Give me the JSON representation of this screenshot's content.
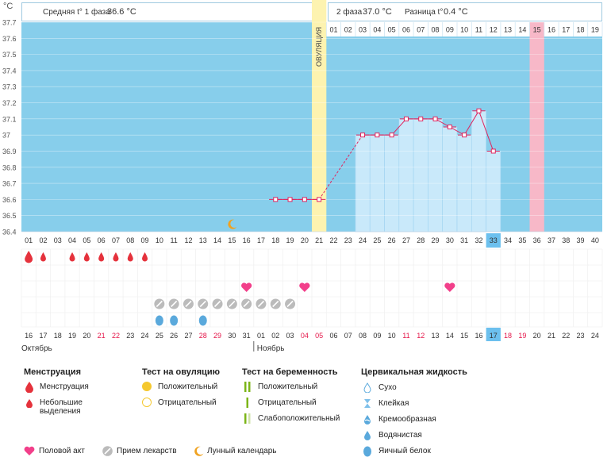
{
  "unit_label": "°C",
  "top": {
    "phase1_label": "Средняя t° 1 фаза",
    "phase1_value": "36.6 °C",
    "phase2_label": "2 фаза",
    "phase2_value": "37.0 °C",
    "diff_label": "Разница t°",
    "diff_value": "0.4 °C",
    "ovulation_label": "ОВУЛЯЦИЯ"
  },
  "chart_data": {
    "type": "line",
    "ylim": [
      36.4,
      37.7
    ],
    "y_ticks": [
      "37.7",
      "37.6",
      "37.5",
      "37.4",
      "37.3",
      "37.2",
      "37.1",
      "37",
      "36.9",
      "36.8",
      "36.7",
      "36.6",
      "36.5",
      "36.4"
    ],
    "cycle_days": [
      "01",
      "02",
      "03",
      "04",
      "05",
      "06",
      "07",
      "08",
      "09",
      "10",
      "11",
      "12",
      "13",
      "14",
      "15",
      "16",
      "17",
      "18",
      "19",
      "20",
      "21",
      "22",
      "23",
      "24",
      "25",
      "26",
      "27",
      "28",
      "29",
      "30",
      "31",
      "32",
      "33",
      "34",
      "35",
      "36",
      "37",
      "38",
      "39",
      "40"
    ],
    "current_cycle_day": "33",
    "phase2_days": [
      "01",
      "02",
      "03",
      "04",
      "05",
      "06",
      "07",
      "08",
      "09",
      "10",
      "11",
      "12",
      "13",
      "14",
      "15",
      "16",
      "17",
      "18",
      "19"
    ],
    "phase2_highlight_day": "15",
    "temperatures": [
      {
        "day": 18,
        "t": 36.6
      },
      {
        "day": 19,
        "t": 36.6
      },
      {
        "day": 20,
        "t": 36.6
      },
      {
        "day": 21,
        "t": 36.6
      },
      {
        "day": 24,
        "t": 37.0
      },
      {
        "day": 25,
        "t": 37.0
      },
      {
        "day": 26,
        "t": 37.0
      },
      {
        "day": 27,
        "t": 37.1
      },
      {
        "day": 28,
        "t": 37.1
      },
      {
        "day": 29,
        "t": 37.1
      },
      {
        "day": 30,
        "t": 37.05
      },
      {
        "day": 31,
        "t": 37.0
      },
      {
        "day": 32,
        "t": 37.15
      },
      {
        "day": 33,
        "t": 36.9
      }
    ],
    "ovulation_day": 21,
    "moon_day": 15,
    "colors": {
      "plot_bg": "#87ceeb",
      "bar_fill": "#c9e9fa",
      "line": "#e0245e",
      "ovulation": "#fdf3b0",
      "highlight": "#f7b8c8"
    }
  },
  "markers": {
    "menstruation_days": [
      1,
      2,
      4,
      5,
      6,
      7,
      8,
      9
    ],
    "menstruation_large_days": [
      1
    ],
    "intercourse_days": [
      16,
      20,
      30
    ],
    "medication_days": [
      10,
      11,
      12,
      13,
      14,
      15,
      16,
      17,
      18,
      19
    ],
    "fluid_days": [
      10,
      11,
      13
    ]
  },
  "calendar": {
    "dates": [
      "16",
      "17",
      "18",
      "19",
      "20",
      "21",
      "22",
      "23",
      "24",
      "25",
      "26",
      "27",
      "28",
      "29",
      "30",
      "31",
      "01",
      "02",
      "03",
      "04",
      "05",
      "06",
      "07",
      "08",
      "09",
      "10",
      "11",
      "12",
      "13",
      "14",
      "15",
      "16",
      "17",
      "18",
      "19",
      "20",
      "21",
      "22",
      "23",
      "24"
    ],
    "red_indices": [
      5,
      6,
      12,
      13,
      19,
      20,
      26,
      27,
      33,
      34
    ],
    "today_index": 32,
    "month1": "Октябрь",
    "month2": "Ноябрь"
  },
  "legend": {
    "menstruation": {
      "title": "Менструация",
      "items": [
        "Менструация",
        "Небольшие выделения"
      ]
    },
    "ovulation_test": {
      "title": "Тест на овуляцию",
      "items": [
        "Положительный",
        "Отрицательный"
      ]
    },
    "pregnancy_test": {
      "title": "Тест на беременность",
      "items": [
        "Положительный",
        "Отрицательный",
        "Слабоположительный"
      ]
    },
    "cervical": {
      "title": "Цервикальная жидкость",
      "items": [
        "Сухо",
        "Клейкая",
        "Кремообразная",
        "Водянистая",
        "Яичный белок"
      ]
    },
    "bottom": [
      "Половой акт",
      "Прием лекарств",
      "Лунный календарь"
    ]
  }
}
